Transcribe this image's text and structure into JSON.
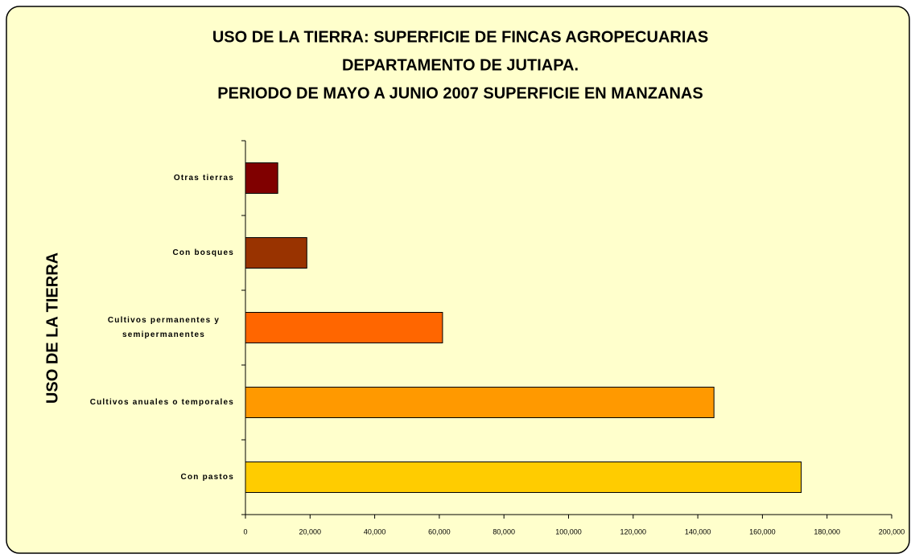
{
  "chart_data": {
    "type": "bar",
    "orientation": "horizontal",
    "title": [
      "USO DE LA TIERRA: SUPERFICIE DE FINCAS AGROPECUARIAS",
      "DEPARTAMENTO DE JUTIAPA.",
      "PERIODO DE MAYO A JUNIO 2007 SUPERFICIE EN MANZANAS"
    ],
    "y_label": "USO DE LA TIERRA",
    "categories": [
      "Otras tierras",
      "Con bosques",
      "Cultivos permanentes y semipermanentes",
      "Cultivos anuales o temporales",
      "Con pastos"
    ],
    "values": [
      10000,
      19000,
      61000,
      145000,
      172000
    ],
    "colors": [
      "#800000",
      "#993300",
      "#ff6600",
      "#ff9900",
      "#ffcc00"
    ],
    "xlim": [
      0,
      200000
    ],
    "xticks": [
      0,
      {
        "value": 20000,
        "label": "20,000"
      },
      {
        "value": 40000,
        "label": "40,000"
      },
      {
        "value": 60000,
        "label": "60,000"
      },
      {
        "value": 80000,
        "label": "80,000"
      },
      {
        "value": 100000,
        "label": "100,000"
      },
      {
        "value": 120000,
        "label": "120,000"
      },
      {
        "value": 140000,
        "label": "140,000"
      },
      {
        "value": 160000,
        "label": "160,000"
      },
      {
        "value": 180000,
        "label": "180,000"
      },
      {
        "value": 200000,
        "label": "200,000"
      }
    ],
    "grid": false
  }
}
